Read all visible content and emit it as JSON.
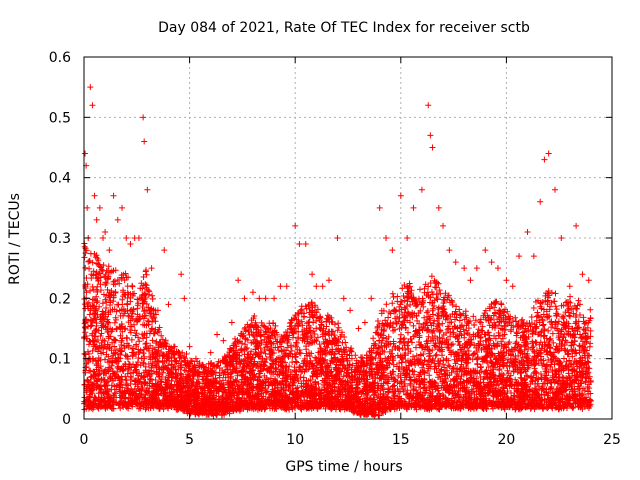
{
  "chart_data": {
    "type": "scatter",
    "title": "Day 084 of 2021, Rate Of TEC Index for receiver sctb",
    "xlabel": "GPS time / hours",
    "ylabel": "ROTI / TECUs",
    "xlim": [
      0,
      25
    ],
    "ylim": [
      0,
      0.6
    ],
    "xticks": [
      "0",
      "5",
      "10",
      "15",
      "20",
      "25"
    ],
    "yticks": [
      "0",
      "0.1",
      "0.2",
      "0.3",
      "0.4",
      "0.5",
      "0.6"
    ],
    "grid": true,
    "marker": "plus",
    "color": "#ff0000",
    "series": [
      {
        "x": [
          0.05,
          0.1,
          0.15,
          0.2,
          0.3,
          0.4,
          0.5,
          0.6,
          0.75,
          0.9,
          1.0,
          1.2,
          1.4,
          1.6,
          1.8,
          2.0,
          2.2,
          2.4,
          2.6,
          2.8,
          2.85,
          3.0,
          3.2,
          3.5,
          3.8,
          4.0,
          4.3,
          4.6,
          4.75,
          5.0,
          5.3,
          5.6,
          6.0,
          6.3,
          6.6,
          7.0,
          7.3,
          7.6,
          8.0,
          8.3,
          8.6,
          9.0,
          9.3,
          9.6,
          10.0,
          10.2,
          10.5,
          10.8,
          11.0,
          11.3,
          11.6,
          12.0,
          12.3,
          12.6,
          13.0,
          13.3,
          13.6,
          14.0,
          14.3,
          14.6,
          15.0,
          15.3,
          15.6,
          16.0,
          16.3,
          16.4,
          16.5,
          16.8,
          17.0,
          17.3,
          17.6,
          18.0,
          18.3,
          18.6,
          19.0,
          19.3,
          19.6,
          20.0,
          20.3,
          20.6,
          21.0,
          21.3,
          21.6,
          21.8,
          22.0,
          22.3,
          22.6,
          23.0,
          23.3,
          23.6,
          23.9
        ],
        "y": [
          0.44,
          0.42,
          0.35,
          0.3,
          0.55,
          0.52,
          0.37,
          0.33,
          0.35,
          0.3,
          0.31,
          0.28,
          0.37,
          0.33,
          0.35,
          0.3,
          0.29,
          0.3,
          0.3,
          0.5,
          0.46,
          0.38,
          0.25,
          0.18,
          0.28,
          0.19,
          0.12,
          0.24,
          0.2,
          0.12,
          0.1,
          0.09,
          0.11,
          0.14,
          0.13,
          0.16,
          0.23,
          0.2,
          0.21,
          0.2,
          0.2,
          0.2,
          0.22,
          0.22,
          0.32,
          0.29,
          0.29,
          0.24,
          0.22,
          0.22,
          0.23,
          0.3,
          0.2,
          0.18,
          0.15,
          0.16,
          0.2,
          0.35,
          0.3,
          0.28,
          0.37,
          0.3,
          0.35,
          0.38,
          0.52,
          0.47,
          0.45,
          0.35,
          0.32,
          0.28,
          0.26,
          0.25,
          0.23,
          0.25,
          0.28,
          0.26,
          0.25,
          0.23,
          0.22,
          0.27,
          0.31,
          0.27,
          0.36,
          0.43,
          0.44,
          0.38,
          0.3,
          0.22,
          0.32,
          0.24,
          0.23
        ]
      }
    ],
    "density_profile": {
      "x": [
        0.0,
        0.5,
        1.0,
        1.5,
        2.0,
        2.5,
        3.0,
        3.5,
        4.0,
        4.5,
        5.0,
        5.5,
        6.0,
        6.5,
        7.0,
        7.5,
        8.0,
        8.5,
        9.0,
        9.5,
        10.0,
        10.5,
        11.0,
        11.5,
        12.0,
        12.5,
        13.0,
        13.5,
        14.0,
        14.5,
        15.0,
        15.5,
        16.0,
        16.5,
        17.0,
        17.5,
        18.0,
        18.5,
        19.0,
        19.5,
        20.0,
        20.5,
        21.0,
        21.5,
        22.0,
        22.5,
        23.0,
        23.5,
        24.0
      ],
      "y_low": [
        0.02,
        0.02,
        0.02,
        0.02,
        0.02,
        0.02,
        0.02,
        0.02,
        0.02,
        0.02,
        0.01,
        0.01,
        0.01,
        0.01,
        0.01,
        0.02,
        0.02,
        0.02,
        0.02,
        0.02,
        0.02,
        0.02,
        0.02,
        0.02,
        0.02,
        0.02,
        0.01,
        0.01,
        0.01,
        0.02,
        0.02,
        0.02,
        0.02,
        0.02,
        0.02,
        0.02,
        0.02,
        0.02,
        0.02,
        0.02,
        0.02,
        0.02,
        0.02,
        0.02,
        0.02,
        0.02,
        0.02,
        0.02,
        0.02
      ],
      "y_high": [
        0.3,
        0.28,
        0.26,
        0.25,
        0.24,
        0.22,
        0.25,
        0.16,
        0.12,
        0.12,
        0.1,
        0.09,
        0.09,
        0.1,
        0.12,
        0.15,
        0.17,
        0.16,
        0.16,
        0.14,
        0.18,
        0.2,
        0.19,
        0.17,
        0.17,
        0.12,
        0.1,
        0.11,
        0.18,
        0.2,
        0.23,
        0.22,
        0.22,
        0.24,
        0.22,
        0.2,
        0.18,
        0.17,
        0.18,
        0.2,
        0.18,
        0.16,
        0.17,
        0.2,
        0.22,
        0.2,
        0.2,
        0.19,
        0.18
      ]
    }
  }
}
